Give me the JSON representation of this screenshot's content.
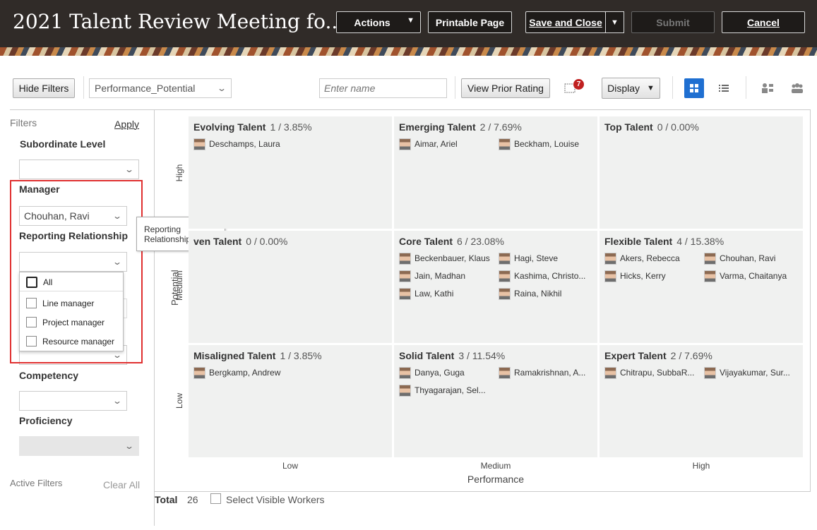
{
  "header": {
    "title": "2021 Talent Review Meeting fo...",
    "actions": "Actions",
    "printable": "Printable Page",
    "save_close": "Save and Close",
    "submit": "Submit",
    "cancel": "Cancel"
  },
  "toolbar": {
    "hide_filters": "Hide Filters",
    "view_select": "Performance_Potential",
    "name_placeholder": "Enter name",
    "view_prior": "View Prior Rating",
    "notif_count": "7",
    "display": "Display"
  },
  "filters": {
    "title": "Filters",
    "apply": "Apply",
    "subordinate_level": "Subordinate Level",
    "manager": "Manager",
    "manager_value": "Chouhan, Ravi",
    "reporting_relationship": "Reporting Relationship",
    "tooltip": "Reporting Relationship",
    "options": [
      "All",
      "Line manager",
      "Project manager",
      "Resource manager"
    ],
    "competency": "Competency",
    "proficiency": "Proficiency",
    "active_filters": "Active Filters",
    "clear_all": "Clear All"
  },
  "grid": {
    "y_title": "Potential",
    "y_labels": [
      "High",
      "Medium",
      "Low"
    ],
    "x_title": "Performance",
    "x_labels": [
      "Low",
      "Medium",
      "High"
    ],
    "cells": [
      {
        "name": "Evolving Talent",
        "stat": "1 / 3.85%",
        "people": [
          "Deschamps, Laura"
        ]
      },
      {
        "name": "Emerging Talent",
        "stat": "2 / 7.69%",
        "people": [
          "Aimar, Ariel",
          "Beckham, Louise"
        ]
      },
      {
        "name": "Top Talent",
        "stat": "0 / 0.00%",
        "people": []
      },
      {
        "name": "ven Talent",
        "stat": "0 / 0.00%",
        "people": []
      },
      {
        "name": "Core Talent",
        "stat": "6 / 23.08%",
        "people": [
          "Beckenbauer, Klaus",
          "Hagi, Steve",
          "Jain, Madhan",
          "Kashima, Christo...",
          "Law, Kathi",
          "Raina, Nikhil"
        ]
      },
      {
        "name": "Flexible Talent",
        "stat": "4 / 15.38%",
        "people": [
          "Akers, Rebecca",
          "Chouhan, Ravi",
          "Hicks, Kerry",
          "Varma, Chaitanya"
        ]
      },
      {
        "name": "Misaligned Talent",
        "stat": "1 / 3.85%",
        "people": [
          "Bergkamp, Andrew"
        ]
      },
      {
        "name": "Solid Talent",
        "stat": "3 / 11.54%",
        "people": [
          "Danya, Guga",
          "Ramakrishnan, A...",
          "Thyagarajan, Sel..."
        ]
      },
      {
        "name": "Expert Talent",
        "stat": "2 / 7.69%",
        "people": [
          "Chitrapu, SubbaR...",
          "Vijayakumar, Sur..."
        ]
      }
    ]
  },
  "footer": {
    "total_label": "Total",
    "total_value": "26",
    "select_visible": "Select Visible Workers"
  }
}
